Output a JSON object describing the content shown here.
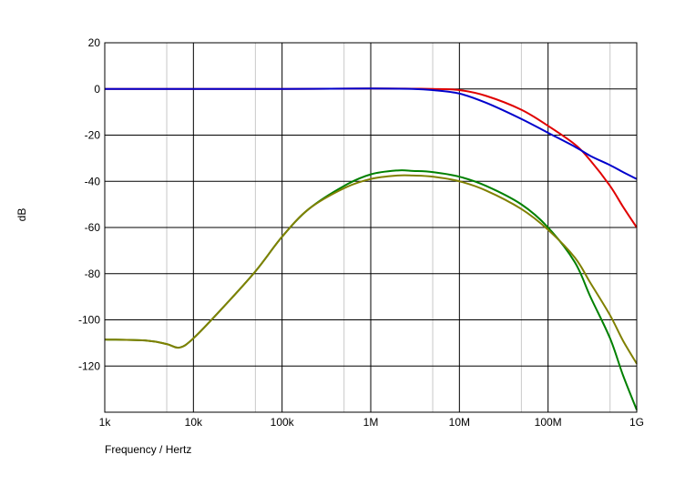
{
  "chart_data": {
    "type": "line",
    "title": "",
    "xlabel": "Frequency / Hertz",
    "ylabel": "dB",
    "xscale": "log",
    "xlim": [
      1000,
      1000000000
    ],
    "ylim": [
      -140,
      20
    ],
    "grid": true,
    "x_ticks": [
      {
        "value": 1000,
        "label": "1k"
      },
      {
        "value": 10000,
        "label": "10k"
      },
      {
        "value": 100000,
        "label": "100k"
      },
      {
        "value": 1000000,
        "label": "1M"
      },
      {
        "value": 10000000,
        "label": "10M"
      },
      {
        "value": 100000000,
        "label": "100M"
      },
      {
        "value": 1000000000,
        "label": "1G"
      }
    ],
    "y_ticks": [
      {
        "value": 20,
        "label": "20"
      },
      {
        "value": 0,
        "label": "0"
      },
      {
        "value": -20,
        "label": "-20"
      },
      {
        "value": -40,
        "label": "-40"
      },
      {
        "value": -60,
        "label": "-60"
      },
      {
        "value": -80,
        "label": "-80"
      },
      {
        "value": -100,
        "label": "-100"
      },
      {
        "value": -120,
        "label": "-120"
      }
    ],
    "series": [
      {
        "color": "#e00000",
        "x": [
          1000,
          10000,
          100000,
          1000000,
          3000000,
          5000000,
          10000000,
          20000000,
          50000000,
          100000000,
          200000000,
          300000000,
          500000000,
          700000000,
          1000000000
        ],
        "y": [
          0,
          0,
          0,
          0.2,
          0.1,
          0,
          -0.5,
          -3,
          -9,
          -16,
          -24,
          -31,
          -42,
          -51,
          -60
        ]
      },
      {
        "color": "#0000cc",
        "x": [
          1000,
          10000,
          100000,
          1000000,
          3000000,
          5000000,
          10000000,
          20000000,
          50000000,
          100000000,
          200000000,
          300000000,
          500000000,
          700000000,
          1000000000
        ],
        "y": [
          0,
          0,
          0,
          0.2,
          0,
          -0.5,
          -2,
          -6,
          -13,
          -19,
          -25,
          -29,
          -33,
          -36,
          -39
        ]
      },
      {
        "color": "#008000",
        "x": [
          1000,
          3000,
          5000,
          7000,
          10000,
          20000,
          50000,
          100000,
          200000,
          500000,
          1000000,
          2000000,
          3000000,
          5000000,
          10000000,
          20000000,
          50000000,
          100000000,
          200000000,
          300000000,
          500000000,
          700000000,
          1000000000
        ],
        "y": [
          -108.5,
          -109,
          -110.5,
          -112,
          -108,
          -96,
          -79,
          -64,
          -52,
          -42,
          -37,
          -35.3,
          -35.5,
          -36,
          -38,
          -42,
          -50,
          -60,
          -75,
          -90,
          -108,
          -124,
          -139
        ]
      },
      {
        "color": "#808000",
        "x": [
          1000,
          3000,
          5000,
          7000,
          10000,
          20000,
          50000,
          100000,
          200000,
          500000,
          1000000,
          2000000,
          3000000,
          5000000,
          10000000,
          20000000,
          50000000,
          100000000,
          200000000,
          300000000,
          500000000,
          700000000,
          1000000000
        ],
        "y": [
          -108.5,
          -109,
          -110.5,
          -112,
          -108,
          -96,
          -79,
          -64,
          -52,
          -43,
          -39,
          -37.5,
          -37.5,
          -38,
          -40,
          -44,
          -52,
          -61,
          -73,
          -84,
          -98,
          -109,
          -119
        ]
      }
    ]
  }
}
